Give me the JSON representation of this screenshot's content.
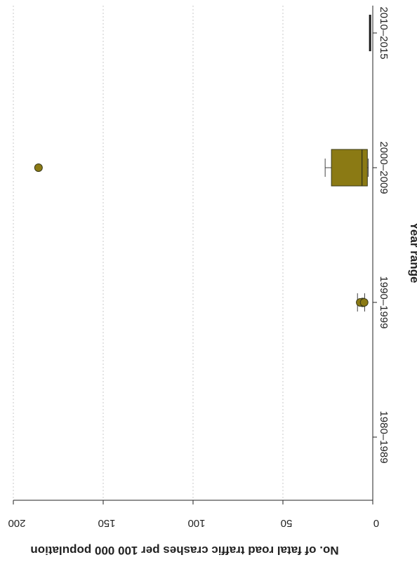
{
  "chart_data": {
    "type": "box",
    "orientation": "rotated-90-clockwise",
    "title": "",
    "xlabel": "Year range",
    "ylabel": "No. of fatal road traffic crashes per 100 000 population",
    "ylim": [
      0,
      200
    ],
    "y_ticks": [
      "0",
      "50",
      "100",
      "150",
      "200"
    ],
    "grid": true,
    "categories": [
      "1980–1989",
      "1990–1999",
      "2000–2009",
      "2010–2015"
    ],
    "boxes": [
      {
        "category": "1980–1989",
        "whisker_low": null,
        "q1": null,
        "median": null,
        "q3": null,
        "whisker_high": null,
        "outliers": []
      },
      {
        "category": "1990–1999",
        "whisker_low": 4.5,
        "q1": 5.0,
        "median": 5.6,
        "q3": 6.2,
        "whisker_high": 8.5,
        "outliers": [
          7.0,
          4.8
        ]
      },
      {
        "category": "2000–2009",
        "whisker_low": 2.5,
        "q1": 3.0,
        "median": 6.0,
        "q3": 23.0,
        "whisker_high": 26.5,
        "outliers": [
          186.0
        ]
      },
      {
        "category": "2010–2015",
        "whisker_low": 1.5,
        "q1": 1.5,
        "median": 1.5,
        "q3": 1.5,
        "whisker_high": 1.5,
        "outliers": []
      }
    ],
    "colors": {
      "box_fill": "#8B7A14",
      "box_stroke": "#3a3a1a",
      "grid": "#c8c8c8",
      "axis": "#222222"
    }
  }
}
